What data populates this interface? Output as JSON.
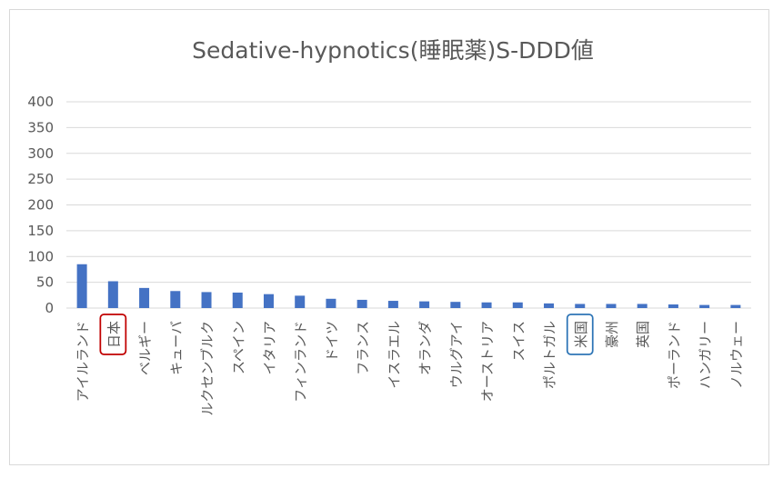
{
  "chart_data": {
    "type": "bar",
    "title": "Sedative-hypnotics(睡眠薬)S-DDD値",
    "xlabel": "",
    "ylabel": "",
    "ylim": [
      0,
      400
    ],
    "yticks": [
      0,
      50,
      100,
      150,
      200,
      250,
      300,
      350,
      400
    ],
    "grid": true,
    "legend": "none",
    "bar_color": "#4472c4",
    "gridline_color": "#d9d9d9",
    "highlights": [
      {
        "category": "日本",
        "color": "#c00000"
      },
      {
        "category": "米国",
        "color": "#2e75b6"
      }
    ],
    "categories": [
      "アイルランド",
      "日本",
      "ベルギー",
      "キューバ",
      "ルクセンブルク",
      "スペイン",
      "イタリア",
      "フィンランド",
      "ドイツ",
      "フランス",
      "イスラエル",
      "オランダ",
      "ウルグアイ",
      "オーストリア",
      "スイス",
      "ポルトガル",
      "米国",
      "豪州",
      "英国",
      "ポーランド",
      "ハンガリー",
      "ノルウェー"
    ],
    "values": [
      85,
      52,
      39,
      33,
      31,
      30,
      27,
      24,
      18,
      16,
      14,
      13,
      12,
      11,
      11,
      9,
      8,
      8,
      8,
      7,
      6,
      6
    ]
  }
}
